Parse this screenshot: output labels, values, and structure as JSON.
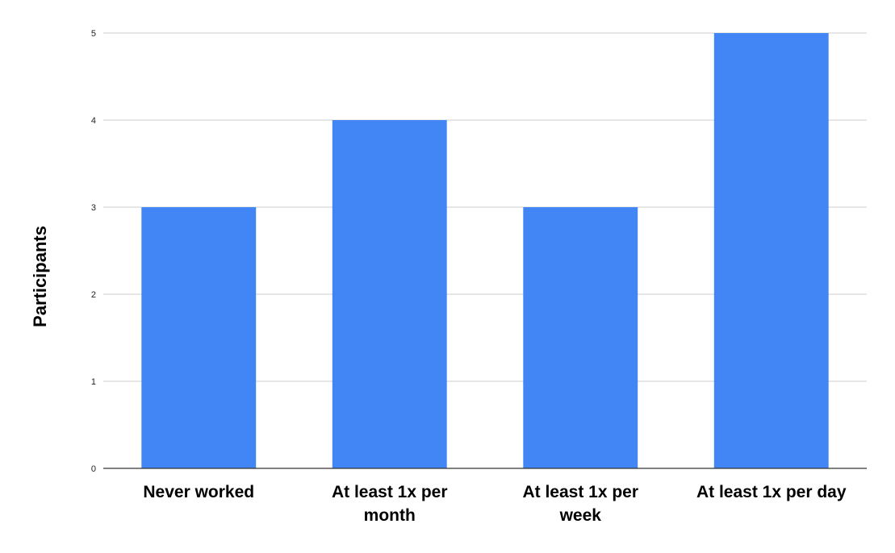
{
  "chart_data": {
    "type": "bar",
    "title": "",
    "xlabel": "",
    "ylabel": "Participants",
    "categories": [
      [
        "Never worked"
      ],
      [
        "At least 1x per",
        "month"
      ],
      [
        "At least 1x per",
        "week"
      ],
      [
        "At least 1x per day"
      ]
    ],
    "values": [
      3,
      4,
      3,
      5
    ],
    "ylim": [
      0,
      5
    ],
    "yticks": [
      0,
      1,
      2,
      3,
      4,
      5
    ],
    "grid": true,
    "legend": "none",
    "bar_color": "#4285f4",
    "grid_color": "#cccccc",
    "axis_color": "#333333"
  }
}
